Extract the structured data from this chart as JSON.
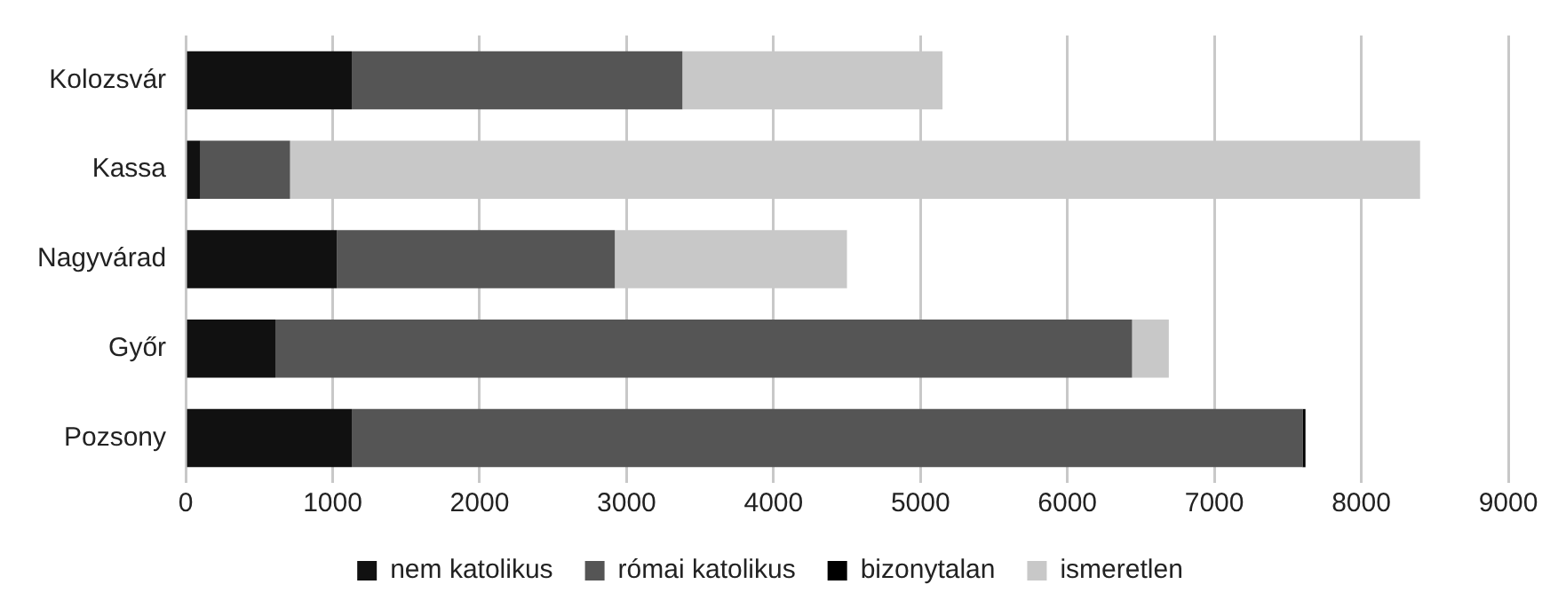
{
  "chart_data": {
    "type": "bar",
    "orientation": "horizontal",
    "stacked": true,
    "categories": [
      "Kolozsvár",
      "Kassa",
      "Nagyvárad",
      "Győr",
      "Pozsony"
    ],
    "series": [
      {
        "name": "nem katolikus",
        "color": "#111111",
        "values": [
          1130,
          100,
          1030,
          610,
          1130
        ]
      },
      {
        "name": "római katolikus",
        "color": "#555555",
        "values": [
          2250,
          610,
          1890,
          5830,
          6470
        ]
      },
      {
        "name": "bizonytalan",
        "color": "#000000",
        "values": [
          0,
          0,
          0,
          0,
          20
        ]
      },
      {
        "name": "ismeretlen",
        "color": "#c8c8c8",
        "values": [
          1770,
          7690,
          1580,
          250,
          0
        ]
      }
    ],
    "xlim": [
      0,
      9000
    ],
    "xticks": [
      0,
      1000,
      2000,
      3000,
      4000,
      5000,
      6000,
      7000,
      8000,
      9000
    ],
    "grid": "x",
    "legend": "bottom"
  }
}
